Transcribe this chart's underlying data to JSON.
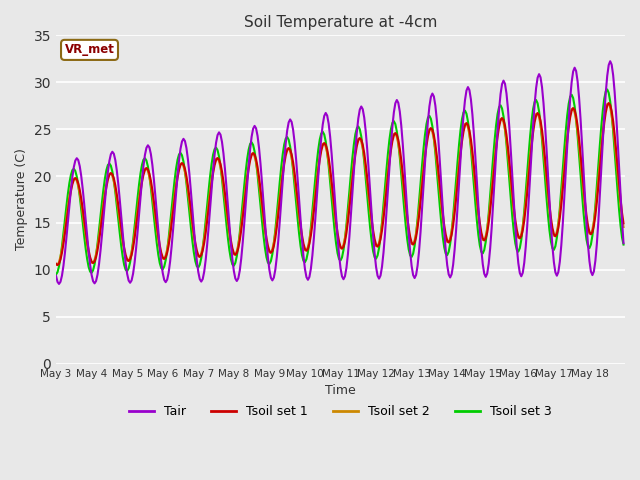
{
  "title": "Soil Temperature at -4cm",
  "xlabel": "Time",
  "ylabel": "Temperature (C)",
  "ylim": [
    0,
    35
  ],
  "yticks": [
    0,
    5,
    10,
    15,
    20,
    25,
    30,
    35
  ],
  "background_color": "#e8e8e8",
  "plot_bg_color": "#e8e8e8",
  "grid_color": "white",
  "annotation_text": "VR_met",
  "annotation_bg": "white",
  "annotation_border": "#8B6914",
  "annotation_text_color": "#8B0000",
  "line_colors": {
    "Tair": "#9900CC",
    "Tsoil set 1": "#CC0000",
    "Tsoil set 2": "#CC8800",
    "Tsoil set 3": "#00CC00"
  },
  "x_tick_labels": [
    "May 3",
    "May 4",
    "May 5",
    "May 6",
    "May 7",
    "May 8",
    "May 9",
    "May 10",
    "May 11",
    "May 12",
    "May 13",
    "May 14",
    "May 15",
    "May 16",
    "May 17",
    "May 18"
  ],
  "n_days": 16,
  "pts_per_day": 24
}
